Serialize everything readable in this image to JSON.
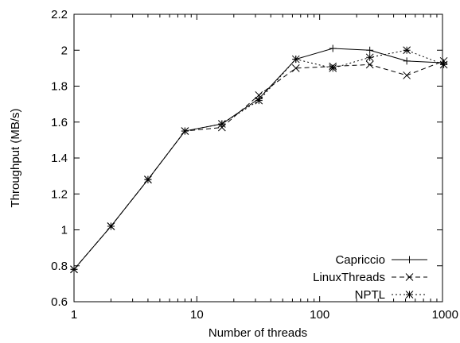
{
  "chart_data": {
    "type": "line",
    "xlabel": "Number of threads",
    "ylabel": "Throughput (MB/s)",
    "xscale": "log",
    "xlim": [
      1,
      1000
    ],
    "ylim": [
      0.6,
      2.2
    ],
    "xticks": [
      1,
      10,
      100,
      1000
    ],
    "xtick_labels": [
      "1",
      "10",
      "100",
      "1000"
    ],
    "yticks": [
      0.6,
      0.8,
      1.0,
      1.2,
      1.4,
      1.6,
      1.8,
      2.0,
      2.2
    ],
    "ytick_labels": [
      "0.6",
      "0.8",
      "1",
      "1.2",
      "1.4",
      "1.6",
      "1.8",
      "2",
      "2.2"
    ],
    "grid": false,
    "legend_position": "bottom-right",
    "x": [
      1,
      2,
      4,
      8,
      16,
      32,
      64,
      128,
      256,
      512,
      1024
    ],
    "series": [
      {
        "name": "Capriccio",
        "marker": "plus",
        "dash": "solid",
        "values": [
          0.78,
          1.02,
          1.28,
          1.55,
          1.59,
          1.73,
          1.95,
          2.01,
          2.0,
          1.94,
          1.93
        ]
      },
      {
        "name": "LinuxThreads",
        "marker": "cross",
        "dash": "dashed",
        "values": [
          0.78,
          1.02,
          1.28,
          1.55,
          1.57,
          1.75,
          1.9,
          1.91,
          1.92,
          1.86,
          1.94
        ]
      },
      {
        "name": "NPTL",
        "marker": "star",
        "dash": "dotted",
        "values": [
          0.78,
          1.02,
          1.28,
          1.55,
          1.59,
          1.72,
          1.95,
          1.9,
          1.96,
          2.0,
          1.92
        ]
      }
    ]
  }
}
